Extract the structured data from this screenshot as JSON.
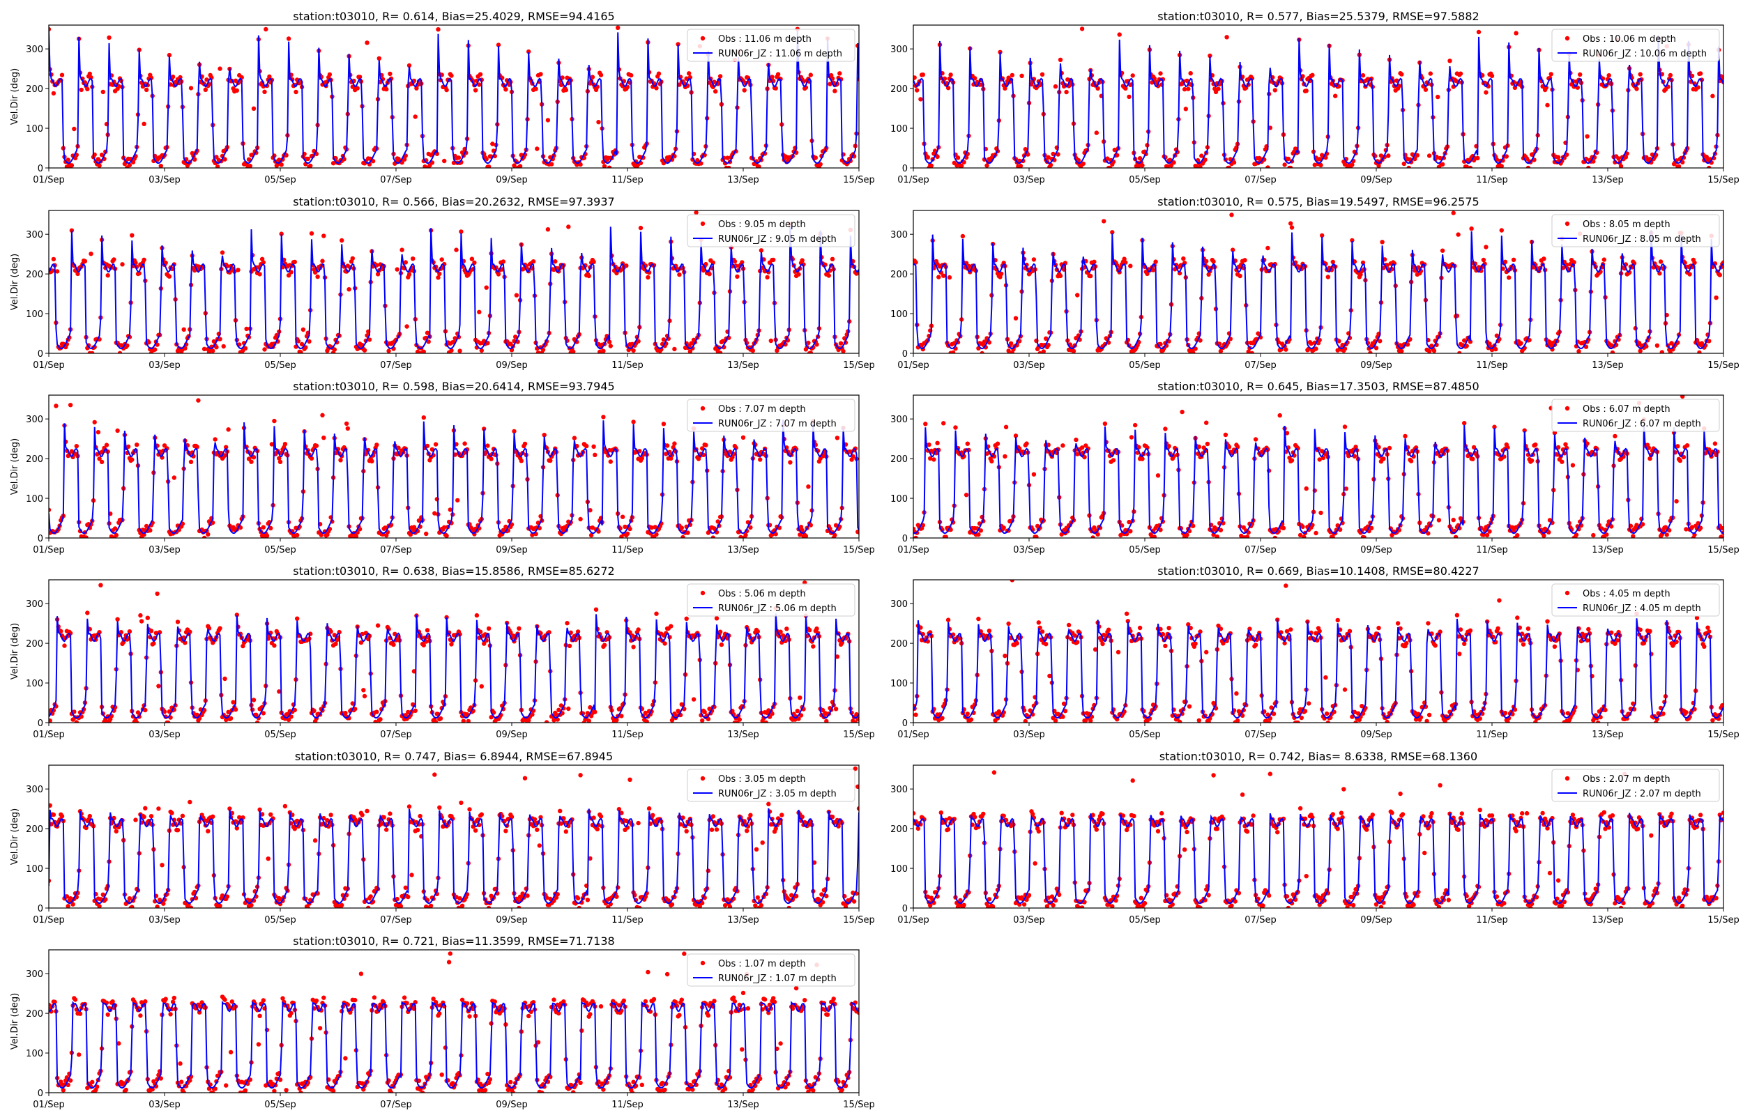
{
  "chart_data": [
    {
      "type": "line",
      "title": "station:t03010, R= 0.614, Bias=25.4029, RMSE=94.4165",
      "xlabel": "",
      "ylabel": "Vel.Dir (deg)",
      "ylim": [
        0,
        360
      ],
      "yticks": [
        0,
        100,
        200,
        300
      ],
      "xticks": [
        "01/Sep",
        "03/Sep",
        "05/Sep",
        "07/Sep",
        "09/Sep",
        "11/Sep",
        "13/Sep",
        "15/Sep"
      ],
      "x_range_days": [
        0,
        14
      ],
      "legend_position": "top-right",
      "grid": false,
      "series": [
        {
          "name": "Obs : 11.06 m depth",
          "style": "scatter",
          "color": "#ff0000"
        },
        {
          "name": "RUN06r_JZ : 11.06 m depth",
          "style": "line",
          "color": "#0000ff"
        }
      ],
      "depth": 11.06
    },
    {
      "type": "line",
      "title": "station:t03010, R= 0.577, Bias=25.5379, RMSE=97.5882",
      "xlabel": "",
      "ylabel": "",
      "ylim": [
        0,
        360
      ],
      "yticks": [
        0,
        100,
        200,
        300
      ],
      "xticks": [
        "01/Sep",
        "03/Sep",
        "05/Sep",
        "07/Sep",
        "09/Sep",
        "11/Sep",
        "13/Sep",
        "15/Sep"
      ],
      "x_range_days": [
        0,
        14
      ],
      "legend_position": "top-right",
      "grid": false,
      "series": [
        {
          "name": "Obs : 10.06 m depth",
          "style": "scatter",
          "color": "#ff0000"
        },
        {
          "name": "RUN06r_JZ : 10.06 m depth",
          "style": "line",
          "color": "#0000ff"
        }
      ],
      "depth": 10.06
    },
    {
      "type": "line",
      "title": "station:t03010, R= 0.566, Bias=20.2632, RMSE=97.3937",
      "xlabel": "",
      "ylabel": "Vel.Dir (deg)",
      "ylim": [
        0,
        360
      ],
      "yticks": [
        0,
        100,
        200,
        300
      ],
      "xticks": [
        "01/Sep",
        "03/Sep",
        "05/Sep",
        "07/Sep",
        "09/Sep",
        "11/Sep",
        "13/Sep",
        "15/Sep"
      ],
      "x_range_days": [
        0,
        14
      ],
      "legend_position": "top-right",
      "grid": false,
      "series": [
        {
          "name": "Obs : 9.05 m depth",
          "style": "scatter",
          "color": "#ff0000"
        },
        {
          "name": "RUN06r_JZ : 9.05 m depth",
          "style": "line",
          "color": "#0000ff"
        }
      ],
      "depth": 9.05
    },
    {
      "type": "line",
      "title": "station:t03010, R= 0.575, Bias=19.5497, RMSE=96.2575",
      "xlabel": "",
      "ylabel": "",
      "ylim": [
        0,
        360
      ],
      "yticks": [
        0,
        100,
        200,
        300
      ],
      "xticks": [
        "01/Sep",
        "03/Sep",
        "05/Sep",
        "07/Sep",
        "09/Sep",
        "11/Sep",
        "13/Sep",
        "15/Sep"
      ],
      "x_range_days": [
        0,
        14
      ],
      "legend_position": "top-right",
      "grid": false,
      "series": [
        {
          "name": "Obs : 8.05 m depth",
          "style": "scatter",
          "color": "#ff0000"
        },
        {
          "name": "RUN06r_JZ : 8.05 m depth",
          "style": "line",
          "color": "#0000ff"
        }
      ],
      "depth": 8.05
    },
    {
      "type": "line",
      "title": "station:t03010, R= 0.598, Bias=20.6414, RMSE=93.7945",
      "xlabel": "",
      "ylabel": "Vel.Dir (deg)",
      "ylim": [
        0,
        360
      ],
      "yticks": [
        0,
        100,
        200,
        300
      ],
      "xticks": [
        "01/Sep",
        "03/Sep",
        "05/Sep",
        "07/Sep",
        "09/Sep",
        "11/Sep",
        "13/Sep",
        "15/Sep"
      ],
      "x_range_days": [
        0,
        14
      ],
      "legend_position": "top-right",
      "grid": false,
      "series": [
        {
          "name": "Obs : 7.07 m depth",
          "style": "scatter",
          "color": "#ff0000"
        },
        {
          "name": "RUN06r_JZ : 7.07 m depth",
          "style": "line",
          "color": "#0000ff"
        }
      ],
      "depth": 7.07
    },
    {
      "type": "line",
      "title": "station:t03010, R= 0.645, Bias=17.3503, RMSE=87.4850",
      "xlabel": "",
      "ylabel": "",
      "ylim": [
        0,
        360
      ],
      "yticks": [
        0,
        100,
        200,
        300
      ],
      "xticks": [
        "01/Sep",
        "03/Sep",
        "05/Sep",
        "07/Sep",
        "09/Sep",
        "11/Sep",
        "13/Sep",
        "15/Sep"
      ],
      "x_range_days": [
        0,
        14
      ],
      "legend_position": "top-right",
      "grid": false,
      "series": [
        {
          "name": "Obs : 6.07 m depth",
          "style": "scatter",
          "color": "#ff0000"
        },
        {
          "name": "RUN06r_JZ : 6.07 m depth",
          "style": "line",
          "color": "#0000ff"
        }
      ],
      "depth": 6.07
    },
    {
      "type": "line",
      "title": "station:t03010, R= 0.638, Bias=15.8586, RMSE=85.6272",
      "xlabel": "",
      "ylabel": "Vel.Dir (deg)",
      "ylim": [
        0,
        360
      ],
      "yticks": [
        0,
        100,
        200,
        300
      ],
      "xticks": [
        "01/Sep",
        "03/Sep",
        "05/Sep",
        "07/Sep",
        "09/Sep",
        "11/Sep",
        "13/Sep",
        "15/Sep"
      ],
      "x_range_days": [
        0,
        14
      ],
      "legend_position": "top-right",
      "grid": false,
      "series": [
        {
          "name": "Obs : 5.06 m depth",
          "style": "scatter",
          "color": "#ff0000"
        },
        {
          "name": "RUN06r_JZ : 5.06 m depth",
          "style": "line",
          "color": "#0000ff"
        }
      ],
      "depth": 5.06
    },
    {
      "type": "line",
      "title": "station:t03010, R= 0.669, Bias=10.1408, RMSE=80.4227",
      "xlabel": "",
      "ylabel": "",
      "ylim": [
        0,
        360
      ],
      "yticks": [
        0,
        100,
        200,
        300
      ],
      "xticks": [
        "01/Sep",
        "03/Sep",
        "05/Sep",
        "07/Sep",
        "09/Sep",
        "11/Sep",
        "13/Sep",
        "15/Sep"
      ],
      "x_range_days": [
        0,
        14
      ],
      "legend_position": "top-right",
      "grid": false,
      "series": [
        {
          "name": "Obs : 4.05 m depth",
          "style": "scatter",
          "color": "#ff0000"
        },
        {
          "name": "RUN06r_JZ : 4.05 m depth",
          "style": "line",
          "color": "#0000ff"
        }
      ],
      "depth": 4.05
    },
    {
      "type": "line",
      "title": "station:t03010, R= 0.747, Bias= 6.8944, RMSE=67.8945",
      "xlabel": "",
      "ylabel": "Vel.Dir (deg)",
      "ylim": [
        0,
        360
      ],
      "yticks": [
        0,
        100,
        200,
        300
      ],
      "xticks": [
        "01/Sep",
        "03/Sep",
        "05/Sep",
        "07/Sep",
        "09/Sep",
        "11/Sep",
        "13/Sep",
        "15/Sep"
      ],
      "x_range_days": [
        0,
        14
      ],
      "legend_position": "top-right",
      "grid": false,
      "series": [
        {
          "name": "Obs : 3.05 m depth",
          "style": "scatter",
          "color": "#ff0000"
        },
        {
          "name": "RUN06r_JZ : 3.05 m depth",
          "style": "line",
          "color": "#0000ff"
        }
      ],
      "depth": 3.05
    },
    {
      "type": "line",
      "title": "station:t03010, R= 0.742, Bias= 8.6338, RMSE=68.1360",
      "xlabel": "",
      "ylabel": "",
      "ylim": [
        0,
        360
      ],
      "yticks": [
        0,
        100,
        200,
        300
      ],
      "xticks": [
        "01/Sep",
        "03/Sep",
        "05/Sep",
        "07/Sep",
        "09/Sep",
        "11/Sep",
        "13/Sep",
        "15/Sep"
      ],
      "x_range_days": [
        0,
        14
      ],
      "legend_position": "top-right",
      "grid": false,
      "series": [
        {
          "name": "Obs : 2.07 m depth",
          "style": "scatter",
          "color": "#ff0000"
        },
        {
          "name": "RUN06r_JZ : 2.07 m depth",
          "style": "line",
          "color": "#0000ff"
        }
      ],
      "depth": 2.07
    },
    {
      "type": "line",
      "title": "station:t03010, R= 0.721, Bias=11.3599, RMSE=71.7138",
      "xlabel": "",
      "ylabel": "Vel.Dir (deg)",
      "ylim": [
        0,
        360
      ],
      "yticks": [
        0,
        100,
        200,
        300
      ],
      "xticks": [
        "01/Sep",
        "03/Sep",
        "05/Sep",
        "07/Sep",
        "09/Sep",
        "11/Sep",
        "13/Sep",
        "15/Sep"
      ],
      "x_range_days": [
        0,
        14
      ],
      "legend_position": "top-right",
      "grid": false,
      "series": [
        {
          "name": "Obs : 1.07 m depth",
          "style": "scatter",
          "color": "#ff0000"
        },
        {
          "name": "RUN06r_JZ : 1.07 m depth",
          "style": "line",
          "color": "#0000ff"
        }
      ],
      "depth": 1.07
    }
  ]
}
